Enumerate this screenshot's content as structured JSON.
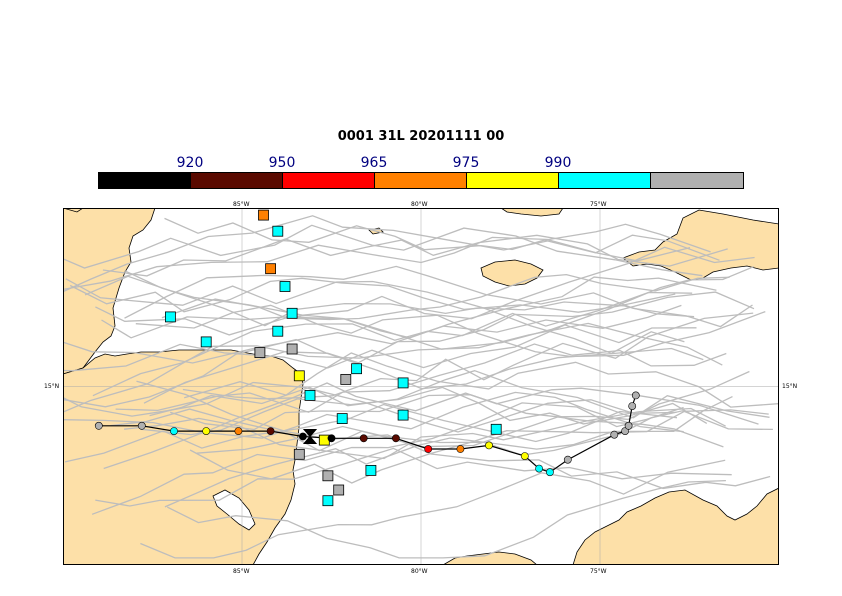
{
  "title": "0001 31L 20201111 00",
  "legend": {
    "labels": [
      "920",
      "950",
      "965",
      "975",
      "990"
    ],
    "colors": [
      "#000000",
      "#5a0a00",
      "#ff0000",
      "#ff8000",
      "#ffff00",
      "#00ffff",
      "#b0b0b0"
    ]
  },
  "axes": {
    "lon_labels": [
      "85°W",
      "80°W",
      "75°W"
    ],
    "lat_labels": [
      "15°N",
      "15°N"
    ]
  },
  "colors": {
    "land": "#fde0a8",
    "sea": "#ffffff",
    "ensemble_track": "#bdbdbd",
    "grid": "#aaaaaa",
    "main_track": "#000000"
  },
  "map_data": {
    "lon_range": [
      -90.0,
      -70.0
    ],
    "lat_range": [
      10.0,
      20.0
    ],
    "main_track": [
      {
        "lon": -89.0,
        "lat": 13.9,
        "cat": "gray"
      },
      {
        "lon": -87.8,
        "lat": 13.9,
        "cat": "gray"
      },
      {
        "lon": -86.9,
        "lat": 13.75,
        "cat": "cyan"
      },
      {
        "lon": -86.0,
        "lat": 13.75,
        "cat": "yellow"
      },
      {
        "lon": -85.1,
        "lat": 13.75,
        "cat": "orange"
      },
      {
        "lon": -84.2,
        "lat": 13.75,
        "cat": "darkred"
      },
      {
        "lon": -83.3,
        "lat": 13.6,
        "cat": "black"
      },
      {
        "lon": -82.5,
        "lat": 13.55,
        "cat": "black"
      },
      {
        "lon": -81.6,
        "lat": 13.55,
        "cat": "darkred"
      },
      {
        "lon": -80.7,
        "lat": 13.55,
        "cat": "darkred"
      },
      {
        "lon": -79.8,
        "lat": 13.25,
        "cat": "red"
      },
      {
        "lon": -78.9,
        "lat": 13.25,
        "cat": "orange"
      },
      {
        "lon": -78.1,
        "lat": 13.35,
        "cat": "yellow"
      },
      {
        "lon": -77.1,
        "lat": 13.05,
        "cat": "yellow"
      },
      {
        "lon": -76.7,
        "lat": 12.7,
        "cat": "cyan"
      },
      {
        "lon": -76.4,
        "lat": 12.6,
        "cat": "cyan"
      },
      {
        "lon": -75.9,
        "lat": 12.95,
        "cat": "gray"
      },
      {
        "lon": -74.6,
        "lat": 13.65,
        "cat": "gray"
      },
      {
        "lon": -74.3,
        "lat": 13.75,
        "cat": "gray"
      },
      {
        "lon": -74.2,
        "lat": 13.9,
        "cat": "gray"
      },
      {
        "lon": -74.1,
        "lat": 14.45,
        "cat": "gray"
      },
      {
        "lon": -74.0,
        "lat": 14.75,
        "cat": "gray"
      }
    ],
    "ensemble_points": [
      {
        "lon": -84.4,
        "lat": 19.8,
        "cat": "orange"
      },
      {
        "lon": -84.0,
        "lat": 19.35,
        "cat": "cyan"
      },
      {
        "lon": -84.2,
        "lat": 18.3,
        "cat": "orange"
      },
      {
        "lon": -83.8,
        "lat": 17.8,
        "cat": "cyan"
      },
      {
        "lon": -83.6,
        "lat": 17.05,
        "cat": "cyan"
      },
      {
        "lon": -87.0,
        "lat": 16.95,
        "cat": "cyan"
      },
      {
        "lon": -84.0,
        "lat": 16.55,
        "cat": "cyan"
      },
      {
        "lon": -86.0,
        "lat": 16.25,
        "cat": "cyan"
      },
      {
        "lon": -83.6,
        "lat": 16.05,
        "cat": "gray"
      },
      {
        "lon": -84.5,
        "lat": 15.95,
        "cat": "gray"
      },
      {
        "lon": -83.4,
        "lat": 15.3,
        "cat": "yellow"
      },
      {
        "lon": -81.8,
        "lat": 15.5,
        "cat": "cyan"
      },
      {
        "lon": -82.1,
        "lat": 15.2,
        "cat": "gray"
      },
      {
        "lon": -80.5,
        "lat": 15.1,
        "cat": "cyan"
      },
      {
        "lon": -83.1,
        "lat": 14.75,
        "cat": "cyan"
      },
      {
        "lon": -82.2,
        "lat": 14.1,
        "cat": "cyan"
      },
      {
        "lon": -80.5,
        "lat": 14.2,
        "cat": "cyan"
      },
      {
        "lon": -77.9,
        "lat": 13.8,
        "cat": "cyan"
      },
      {
        "lon": -82.7,
        "lat": 13.5,
        "cat": "yellow"
      },
      {
        "lon": -83.4,
        "lat": 13.1,
        "cat": "gray"
      },
      {
        "lon": -81.4,
        "lat": 12.65,
        "cat": "cyan"
      },
      {
        "lon": -82.6,
        "lat": 12.5,
        "cat": "gray"
      },
      {
        "lon": -82.3,
        "lat": 12.1,
        "cat": "gray"
      },
      {
        "lon": -82.6,
        "lat": 11.8,
        "cat": "cyan"
      }
    ],
    "storm_symbol": {
      "lon": -83.1,
      "lat": 13.6
    }
  }
}
